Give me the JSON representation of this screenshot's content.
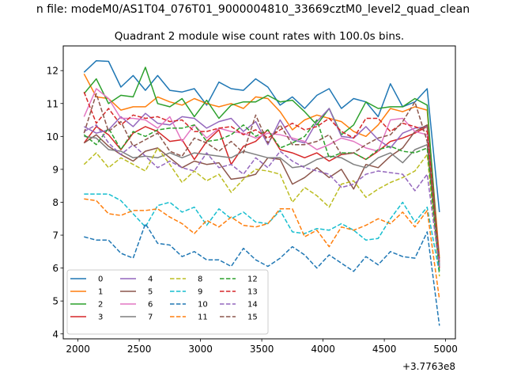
{
  "chart_data": {
    "type": "line",
    "suptitle": "n file: modeM0/AS1T04_076T01_9000004810_33669cztM0_level2_quad_clean",
    "title": "Quadrant 2 module wise count rates with 100.0s bins.",
    "xlabel": "",
    "ylabel": "",
    "x_offset_label": "+3.7763e8",
    "xlim": [
      1880,
      5080
    ],
    "ylim": [
      3.85,
      12.75
    ],
    "xticks": [
      2000,
      2500,
      3000,
      3500,
      4000,
      4500,
      5000
    ],
    "yticks": [
      4,
      5,
      6,
      7,
      8,
      9,
      10,
      11,
      12
    ],
    "grid": false,
    "legend_position": "lower-left",
    "legend_columns": 4,
    "x": [
      2050,
      2150,
      2250,
      2350,
      2450,
      2550,
      2650,
      2750,
      2850,
      2950,
      3050,
      3150,
      3250,
      3350,
      3450,
      3550,
      3650,
      3750,
      3850,
      3950,
      4050,
      4150,
      4250,
      4350,
      4450,
      4550,
      4650,
      4750,
      4850,
      4950
    ],
    "series": [
      {
        "name": "0",
        "color": "#1f77b4",
        "dash": "solid",
        "values": [
          11.95,
          12.3,
          12.28,
          11.5,
          11.85,
          11.4,
          11.85,
          11.4,
          11.35,
          11.45,
          10.95,
          11.65,
          11.45,
          11.4,
          11.75,
          11.5,
          10.95,
          11.2,
          10.85,
          11.25,
          11.45,
          10.85,
          11.15,
          11.05,
          10.6,
          11.6,
          10.9,
          11.05,
          11.45,
          7.7
        ]
      },
      {
        "name": "1",
        "color": "#ff7f0e",
        "dash": "solid",
        "values": [
          11.9,
          11.2,
          11.15,
          10.8,
          10.9,
          10.9,
          11.2,
          11.05,
          10.95,
          11.15,
          11.0,
          10.9,
          11.0,
          10.85,
          11.2,
          11.15,
          10.75,
          10.2,
          10.5,
          10.65,
          10.55,
          10.45,
          10.15,
          10.0,
          10.35,
          10.85,
          10.75,
          10.9,
          10.8,
          6.3
        ]
      },
      {
        "name": "2",
        "color": "#2ca02c",
        "dash": "solid",
        "values": [
          11.3,
          11.75,
          11.0,
          11.25,
          11.2,
          12.1,
          11.0,
          10.9,
          11.15,
          10.6,
          11.1,
          10.55,
          10.95,
          11.05,
          11.05,
          11.25,
          11.05,
          11.1,
          10.75,
          10.35,
          10.85,
          10.05,
          10.35,
          11.05,
          10.85,
          10.9,
          10.9,
          11.15,
          10.95,
          6.05
        ]
      },
      {
        "name": "3",
        "color": "#d62728",
        "dash": "solid",
        "values": [
          9.8,
          10.3,
          10.05,
          9.6,
          10.1,
          10.3,
          10.15,
          9.85,
          9.9,
          9.3,
          9.85,
          10.2,
          9.15,
          9.7,
          9.85,
          10.2,
          9.6,
          9.5,
          9.35,
          9.5,
          9.25,
          9.45,
          9.5,
          9.3,
          9.55,
          9.85,
          9.95,
          10.1,
          10.3,
          6.0
        ]
      },
      {
        "name": "4",
        "color": "#9467bd",
        "dash": "solid",
        "values": [
          10.3,
          10.1,
          10.2,
          10.6,
          10.3,
          10.7,
          10.4,
          10.35,
          10.6,
          10.55,
          10.25,
          10.45,
          10.55,
          10.15,
          10.45,
          9.75,
          10.5,
          9.9,
          9.8,
          10.45,
          10.85,
          10.0,
          9.95,
          10.3,
          9.9,
          9.65,
          10.1,
          10.25,
          10.3,
          6.1
        ]
      },
      {
        "name": "5",
        "color": "#8c564b",
        "dash": "solid",
        "values": [
          9.8,
          10.05,
          9.7,
          9.45,
          9.25,
          9.55,
          9.65,
          9.35,
          9.05,
          9.25,
          9.15,
          9.2,
          8.7,
          8.75,
          8.85,
          9.35,
          9.3,
          8.55,
          8.75,
          9.05,
          8.75,
          9.0,
          8.4,
          9.15,
          9.05,
          9.4,
          9.65,
          10.15,
          10.35,
          6.2
        ]
      },
      {
        "name": "6",
        "color": "#e377c2",
        "dash": "solid",
        "values": [
          10.6,
          11.45,
          11.15,
          10.55,
          10.55,
          10.5,
          10.25,
          10.6,
          9.85,
          10.35,
          9.95,
          10.25,
          10.15,
          10.1,
          9.95,
          10.1,
          10.05,
          9.95,
          9.85,
          9.6,
          9.75,
          9.95,
          9.85,
          9.65,
          9.55,
          10.5,
          10.55,
          10.15,
          10.05,
          6.15
        ]
      },
      {
        "name": "7",
        "color": "#7f7f7f",
        "dash": "solid",
        "values": [
          10.0,
          9.95,
          9.6,
          9.55,
          9.35,
          9.4,
          9.35,
          9.5,
          9.35,
          9.5,
          9.45,
          9.4,
          9.35,
          9.55,
          9.45,
          9.35,
          9.35,
          9.05,
          9.1,
          9.3,
          9.4,
          9.35,
          9.15,
          9.05,
          9.35,
          9.5,
          9.2,
          9.6,
          9.75,
          6.1
        ]
      },
      {
        "name": "8",
        "color": "#bcbd22",
        "dash": "dashed",
        "values": [
          9.15,
          9.5,
          9.05,
          9.35,
          9.15,
          8.95,
          9.65,
          9.15,
          8.6,
          8.95,
          8.65,
          8.85,
          8.3,
          8.7,
          9.0,
          8.95,
          8.85,
          8.0,
          8.45,
          8.2,
          7.85,
          8.55,
          8.65,
          8.15,
          8.4,
          8.6,
          8.75,
          8.95,
          9.45,
          5.75
        ]
      },
      {
        "name": "9",
        "color": "#17becf",
        "dash": "dashed",
        "values": [
          8.25,
          8.25,
          8.25,
          8.05,
          7.65,
          7.25,
          7.9,
          8.0,
          7.7,
          7.85,
          7.3,
          7.8,
          7.5,
          7.7,
          7.4,
          7.35,
          7.75,
          7.1,
          7.05,
          7.2,
          7.15,
          7.35,
          7.15,
          6.85,
          6.9,
          7.5,
          8.0,
          7.4,
          7.85,
          5.85
        ]
      },
      {
        "name": "10",
        "color": "#1f77b4",
        "dash": "dashed",
        "values": [
          6.95,
          6.85,
          6.85,
          6.45,
          6.3,
          7.35,
          6.75,
          6.7,
          6.35,
          6.5,
          6.25,
          6.25,
          6.05,
          6.6,
          6.25,
          6.05,
          6.3,
          6.65,
          6.4,
          6.0,
          6.4,
          6.15,
          5.9,
          6.35,
          6.1,
          6.5,
          6.35,
          6.3,
          7.1,
          4.25
        ]
      },
      {
        "name": "11",
        "color": "#ff7f0e",
        "dash": "dashed",
        "values": [
          8.1,
          8.05,
          7.65,
          7.6,
          7.75,
          7.75,
          7.8,
          7.55,
          7.35,
          7.05,
          7.45,
          7.25,
          7.55,
          7.3,
          7.25,
          7.35,
          7.8,
          7.8,
          6.95,
          7.15,
          6.65,
          7.25,
          7.15,
          7.3,
          7.5,
          7.35,
          7.7,
          7.25,
          7.75,
          5.05
        ]
      },
      {
        "name": "12",
        "color": "#2ca02c",
        "dash": "dashed",
        "values": [
          10.05,
          9.75,
          10.25,
          9.6,
          10.15,
          10.0,
          10.2,
          10.25,
          10.25,
          10.35,
          9.85,
          9.9,
          10.05,
          10.35,
          10.0,
          10.2,
          9.65,
          9.8,
          10.0,
          10.5,
          9.35,
          9.5,
          9.5,
          9.3,
          9.6,
          9.7,
          9.55,
          9.5,
          9.65,
          5.9
        ]
      },
      {
        "name": "13",
        "color": "#d62728",
        "dash": "dashed",
        "values": [
          11.35,
          10.4,
          10.85,
          10.35,
          10.65,
          10.55,
          10.6,
          10.45,
          10.5,
          10.15,
          10.15,
          10.25,
          10.3,
          10.05,
          10.2,
          9.95,
          10.2,
          10.4,
          10.2,
          10.3,
          10.55,
          10.15,
          9.95,
          10.55,
          10.55,
          10.15,
          10.4,
          10.3,
          10.15,
          6.2
        ]
      },
      {
        "name": "14",
        "color": "#9467bd",
        "dash": "dashed",
        "values": [
          10.15,
          10.35,
          9.8,
          9.45,
          9.75,
          9.4,
          9.05,
          9.25,
          9.05,
          8.95,
          9.5,
          9.05,
          9.15,
          8.85,
          9.35,
          9.05,
          9.55,
          9.25,
          9.05,
          8.95,
          8.85,
          8.45,
          8.55,
          8.85,
          8.95,
          8.9,
          8.85,
          8.35,
          8.85,
          6.05
        ]
      },
      {
        "name": "15",
        "color": "#8c564b",
        "dash": "dashed",
        "values": [
          10.1,
          11.3,
          10.15,
          10.45,
          9.7,
          9.9,
          10.1,
          9.55,
          9.4,
          9.95,
          9.8,
          9.55,
          9.85,
          9.5,
          10.65,
          9.8,
          10.35,
          9.75,
          9.75,
          9.85,
          10.05,
          9.45,
          9.5,
          9.75,
          9.95,
          10.05,
          10.45,
          11.05,
          9.85,
          6.3
        ]
      }
    ]
  }
}
